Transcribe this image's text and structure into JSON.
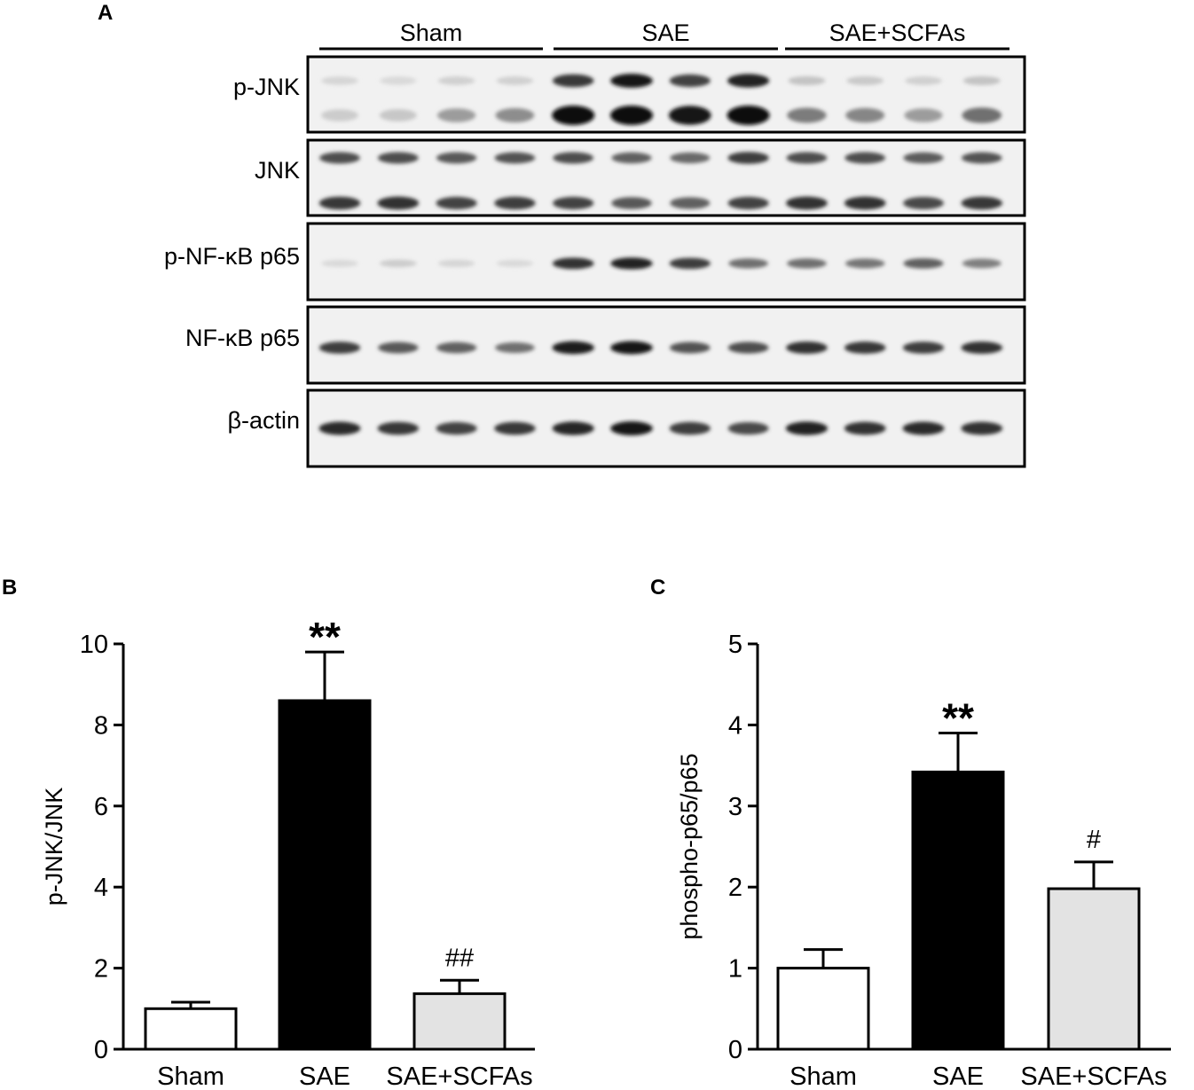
{
  "panel_labels": [
    "A",
    "B",
    "C"
  ],
  "western_blot": {
    "groups": [
      "Sham",
      "SAE",
      "SAE+SCFAs"
    ],
    "lanes_per_group": 4,
    "blots": [
      {
        "label": "p-JNK",
        "bands": [
          {
            "intensity": [
              0.1,
              0.08,
              0.12,
              0.12,
              0.8,
              0.95,
              0.75,
              0.9,
              0.18,
              0.15,
              0.12,
              0.18
            ]
          },
          {
            "intensity": [
              0.14,
              0.16,
              0.35,
              0.42,
              1.0,
              1.0,
              0.95,
              1.0,
              0.5,
              0.45,
              0.35,
              0.55
            ]
          }
        ]
      },
      {
        "label": "JNK",
        "bands": [
          {
            "intensity": [
              0.7,
              0.7,
              0.65,
              0.68,
              0.7,
              0.62,
              0.58,
              0.78,
              0.7,
              0.7,
              0.64,
              0.68
            ]
          },
          {
            "intensity": [
              0.8,
              0.82,
              0.75,
              0.78,
              0.75,
              0.65,
              0.62,
              0.75,
              0.82,
              0.82,
              0.72,
              0.8
            ]
          }
        ]
      },
      {
        "label": "p-NF-κB p65",
        "bands": [
          {
            "intensity": [
              0.08,
              0.14,
              0.1,
              0.08,
              0.82,
              0.9,
              0.78,
              0.55,
              0.55,
              0.52,
              0.62,
              0.48
            ]
          }
        ]
      },
      {
        "label": "NF-κB p65",
        "bands": [
          {
            "intensity": [
              0.78,
              0.65,
              0.62,
              0.55,
              0.92,
              0.95,
              0.68,
              0.7,
              0.82,
              0.8,
              0.78,
              0.82
            ]
          }
        ]
      },
      {
        "label": "β-actin",
        "bands": [
          {
            "intensity": [
              0.85,
              0.8,
              0.75,
              0.8,
              0.88,
              0.95,
              0.78,
              0.72,
              0.9,
              0.82,
              0.85,
              0.82
            ]
          }
        ]
      }
    ]
  },
  "chart_data": [
    {
      "type": "bar",
      "panel": "B",
      "categories": [
        "Sham",
        "SAE",
        "SAE+SCFAs"
      ],
      "values": [
        1.0,
        8.6,
        1.37
      ],
      "errors": [
        0.16,
        1.2,
        0.33
      ],
      "annotations": [
        "",
        "**",
        "##"
      ],
      "ylabel": "p-JNK/JNK",
      "ylim": [
        0,
        10
      ],
      "yticks": [
        0,
        2,
        4,
        6,
        8,
        10
      ],
      "colors": [
        "#ffffff",
        "#000000",
        "#e3e3e3"
      ]
    },
    {
      "type": "bar",
      "panel": "C",
      "categories": [
        "Sham",
        "SAE",
        "SAE+SCFAs"
      ],
      "values": [
        1.0,
        3.42,
        1.98
      ],
      "errors": [
        0.23,
        0.48,
        0.33
      ],
      "annotations": [
        "",
        "**",
        "#"
      ],
      "ylabel": "phospho-p65/p65",
      "ylim": [
        0,
        5
      ],
      "yticks": [
        0,
        1,
        2,
        3,
        4,
        5
      ],
      "colors": [
        "#ffffff",
        "#000000",
        "#e3e3e3"
      ]
    }
  ]
}
